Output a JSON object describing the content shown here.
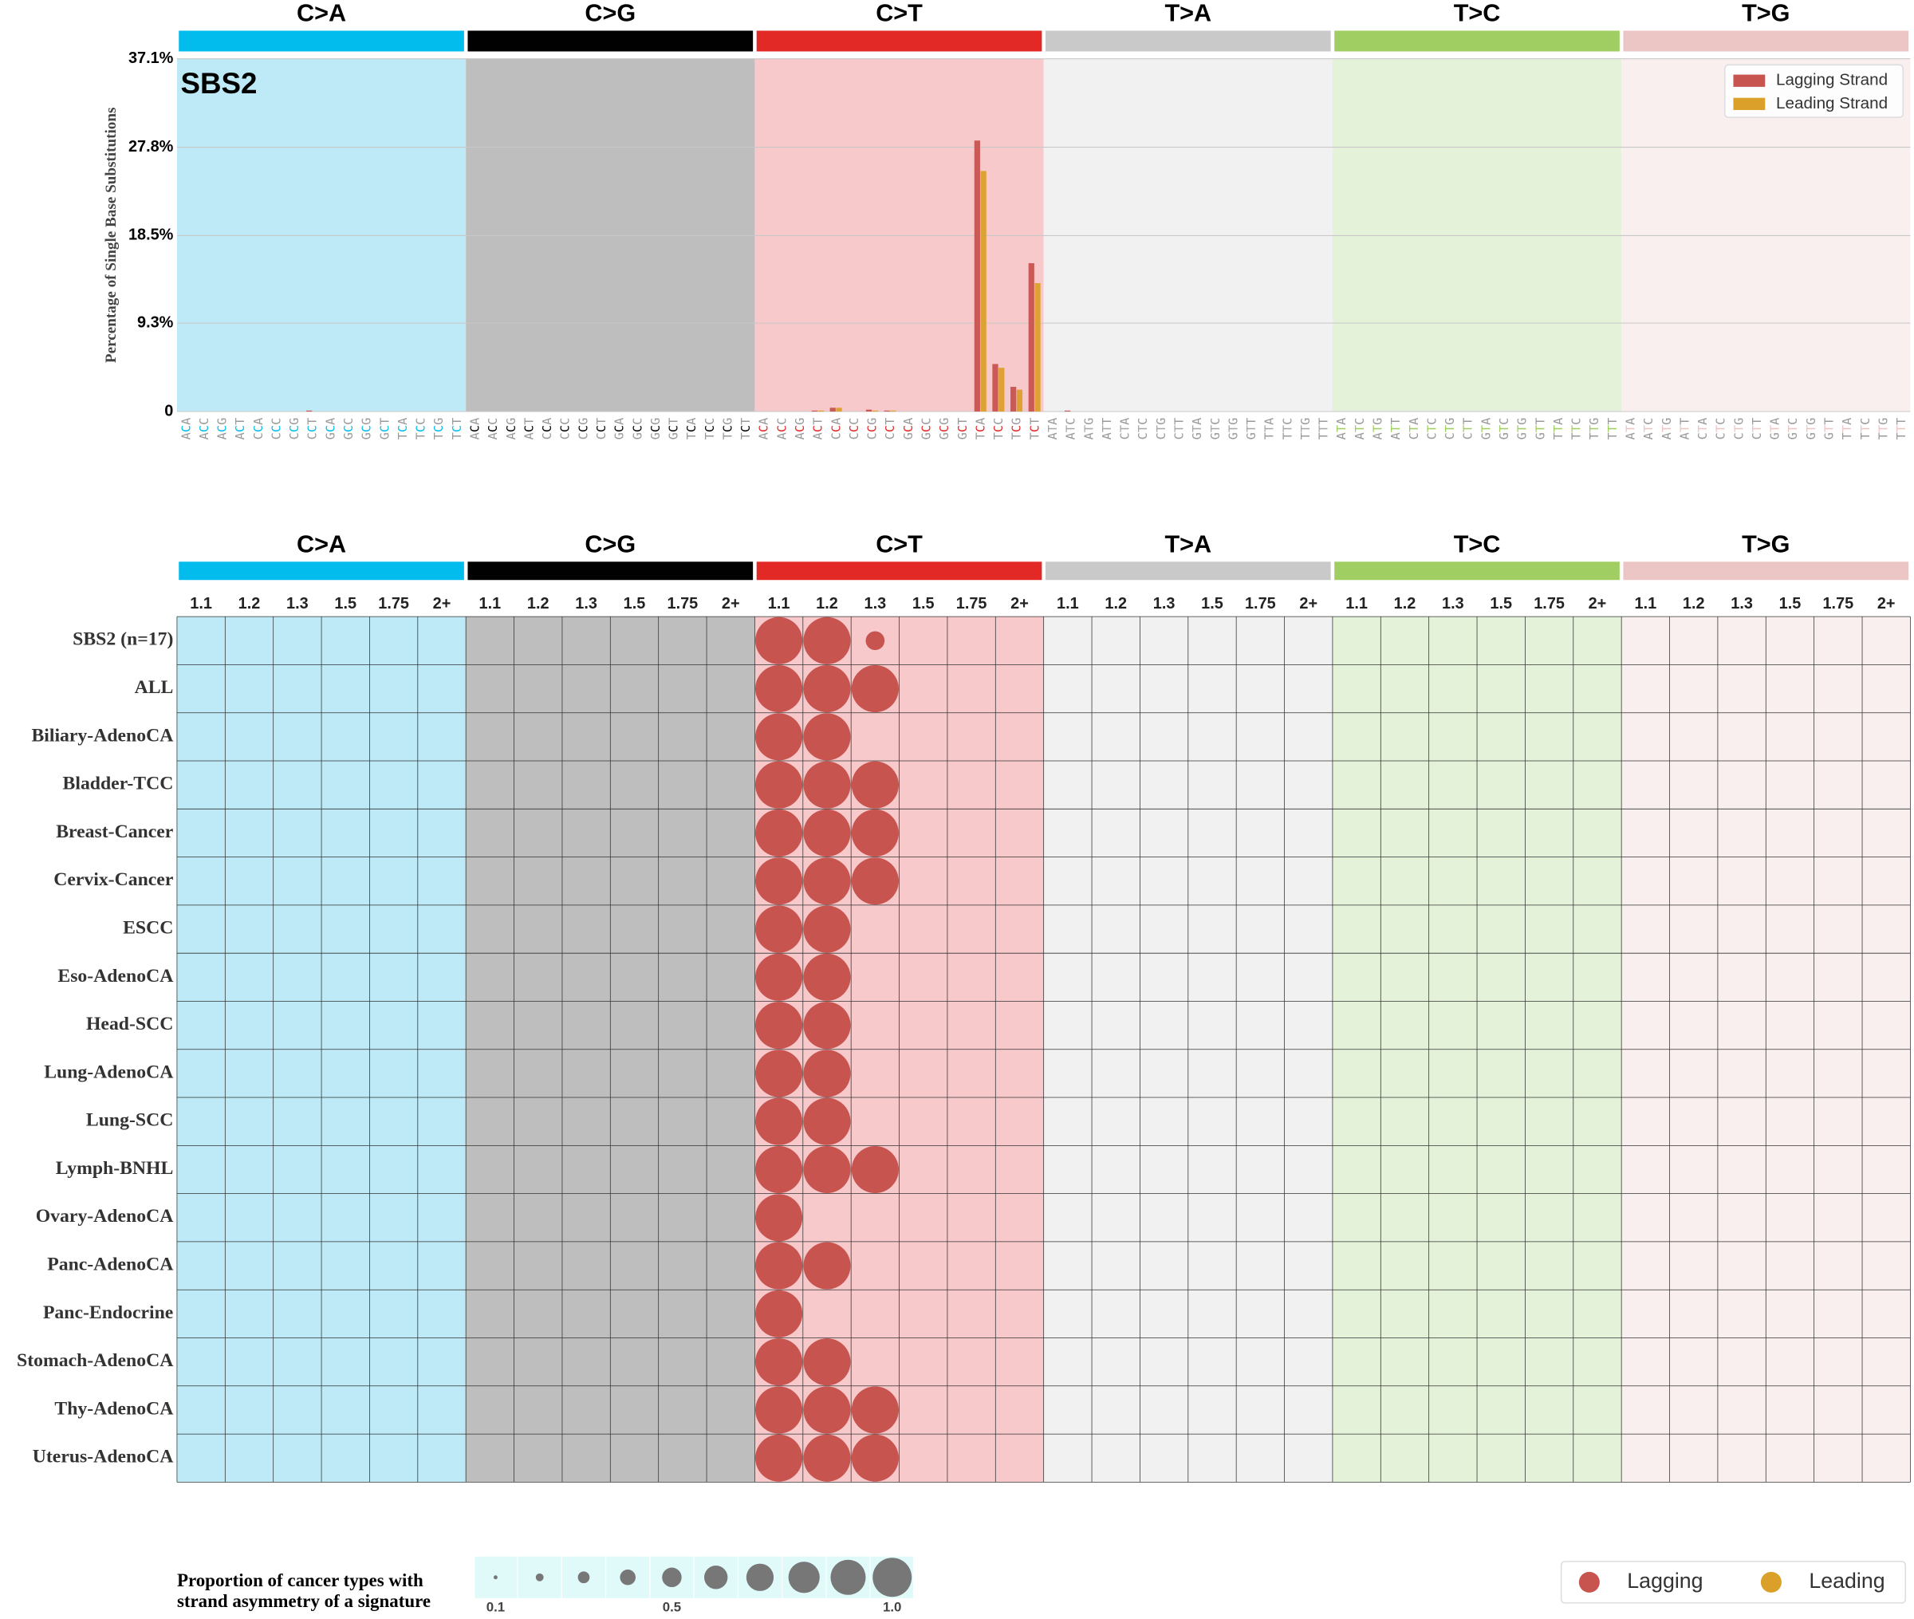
{
  "chart_data": [
    {
      "type": "bar",
      "title": "SBS2",
      "y_label": "Percentage of Single Base Substitutions",
      "groups": [
        "C>A",
        "C>G",
        "C>T",
        "T>A",
        "T>C",
        "T>G"
      ],
      "group_colors": [
        "#03bcee",
        "#010101",
        "#e32926",
        "#cac9c9",
        "#a1ce63",
        "#ebc6c4"
      ],
      "panel_colors": [
        "#bdeaf6",
        "#bebebe",
        "#f7c9cb",
        "#f1f1f1",
        "#e5f2da",
        "#f8efee"
      ],
      "categories": [
        "ACA",
        "ACC",
        "ACG",
        "ACT",
        "CCA",
        "CCC",
        "CCG",
        "CCT",
        "GCA",
        "GCC",
        "GCG",
        "GCT",
        "TCA",
        "TCC",
        "TCG",
        "TCT",
        "ACA",
        "ACC",
        "ACG",
        "ACT",
        "CCA",
        "CCC",
        "CCG",
        "CCT",
        "GCA",
        "GCC",
        "GCG",
        "GCT",
        "TCA",
        "TCC",
        "TCG",
        "TCT",
        "ACA",
        "ACC",
        "ACG",
        "ACT",
        "CCA",
        "CCC",
        "CCG",
        "CCT",
        "GCA",
        "GCC",
        "GCG",
        "GCT",
        "TCA",
        "TCC",
        "TCG",
        "TCT",
        "ATA",
        "ATC",
        "ATG",
        "ATT",
        "CTA",
        "CTC",
        "CTG",
        "CTT",
        "GTA",
        "GTC",
        "GTG",
        "GTT",
        "TTA",
        "TTC",
        "TTG",
        "TTT",
        "ATA",
        "ATC",
        "ATG",
        "ATT",
        "CTA",
        "CTC",
        "CTG",
        "CTT",
        "GTA",
        "GTC",
        "GTG",
        "GTT",
        "TTA",
        "TTC",
        "TTG",
        "TTT",
        "ATA",
        "ATC",
        "ATG",
        "ATT",
        "CTA",
        "CTC",
        "CTG",
        "CTT",
        "GTA",
        "GTC",
        "GTG",
        "GTT",
        "TTA",
        "TTC",
        "TTG",
        "TTT"
      ],
      "series": [
        {
          "name": "Lagging Strand",
          "color": "#c85450",
          "values": [
            0,
            0,
            0,
            0,
            0,
            0,
            0,
            0.1,
            0,
            0,
            0,
            0,
            0,
            0,
            0,
            0,
            0,
            0,
            0,
            0,
            0,
            0,
            0,
            0,
            0,
            0,
            0,
            0,
            0,
            0,
            0,
            0,
            0,
            0,
            0,
            0.1,
            0.4,
            0,
            0.2,
            0.1,
            0,
            0,
            0,
            0,
            28.5,
            5,
            2.6,
            15.6,
            0,
            0.1,
            0,
            0,
            0,
            0,
            0,
            0,
            0,
            0,
            0,
            0,
            0,
            0,
            0,
            0,
            0,
            0,
            0,
            0,
            0,
            0,
            0,
            0,
            0,
            0,
            0,
            0,
            0,
            0,
            0,
            0,
            0,
            0,
            0,
            0,
            0,
            0,
            0,
            0,
            0,
            0,
            0,
            0,
            0,
            0,
            0,
            0
          ]
        },
        {
          "name": "Leading Strand",
          "color": "#dba02a",
          "values": [
            0,
            0,
            0,
            0,
            0,
            0,
            0,
            0,
            0,
            0,
            0,
            0,
            0,
            0,
            0,
            0,
            0,
            0,
            0,
            0,
            0,
            0,
            0,
            0,
            0,
            0,
            0,
            0,
            0,
            0,
            0,
            0,
            0,
            0,
            0,
            0.1,
            0.4,
            0,
            0.1,
            0.1,
            0,
            0,
            0,
            0,
            25.3,
            4.6,
            2.3,
            13.5,
            0,
            0,
            0,
            0,
            0,
            0,
            0,
            0,
            0,
            0,
            0,
            0,
            0,
            0,
            0,
            0,
            0,
            0,
            0,
            0,
            0,
            0,
            0,
            0,
            0,
            0,
            0,
            0,
            0,
            0,
            0,
            0,
            0,
            0,
            0,
            0,
            0,
            0,
            0,
            0,
            0,
            0,
            0,
            0,
            0,
            0,
            0,
            0
          ]
        }
      ],
      "ylim": [
        0,
        37.1
      ],
      "yticks": [
        0,
        {
          "value": 9.3,
          "label": "9.3%"
        },
        {
          "value": 18.5,
          "label": "18.5%"
        },
        {
          "value": 27.8,
          "label": "27.8%"
        },
        {
          "value": 37.1,
          "label": "37.1%"
        }
      ],
      "grid": true,
      "legend": "upper right"
    },
    {
      "type": "bubble_matrix",
      "groups": [
        "C>A",
        "C>G",
        "C>T",
        "T>A",
        "T>C",
        "T>G"
      ],
      "group_colors": [
        "#03bcee",
        "#010101",
        "#e32926",
        "#cac9c9",
        "#a1ce63",
        "#ebc6c4"
      ],
      "panel_colors": [
        "#bdeaf6",
        "#bebebe",
        "#f7c9cb",
        "#f1f1f1",
        "#e5f2da",
        "#f8efee"
      ],
      "thresholds": [
        "1.1",
        "1.2",
        "1.3",
        "1.5",
        "1.75",
        "2+"
      ],
      "rows": [
        "SBS2 (n=17)",
        "ALL",
        "Biliary-AdenoCA",
        "Bladder-TCC",
        "Breast-Cancer",
        "Cervix-Cancer",
        "ESCC",
        "Eso-AdenoCA",
        "Head-SCC",
        "Lung-AdenoCA",
        "Lung-SCC",
        "Lymph-BNHL",
        "Ovary-AdenoCA",
        "Panc-AdenoCA",
        "Panc-Endocrine",
        "Stomach-AdenoCA",
        "Thy-AdenoCA",
        "Uterus-AdenoCA"
      ],
      "values": [
        [
          null,
          null,
          null,
          null,
          null,
          null,
          null,
          null,
          null,
          null,
          null,
          null,
          1,
          1,
          0.4,
          null,
          null,
          null,
          null,
          null,
          null,
          null,
          null,
          null,
          null,
          null,
          null,
          null,
          null,
          null,
          null,
          null,
          null,
          null,
          null,
          null
        ],
        [
          null,
          null,
          null,
          null,
          null,
          null,
          null,
          null,
          null,
          null,
          null,
          null,
          1,
          1,
          1,
          null,
          null,
          null,
          null,
          null,
          null,
          null,
          null,
          null,
          null,
          null,
          null,
          null,
          null,
          null,
          null,
          null,
          null,
          null,
          null,
          null
        ],
        [
          null,
          null,
          null,
          null,
          null,
          null,
          null,
          null,
          null,
          null,
          null,
          null,
          1,
          1,
          null,
          null,
          null,
          null,
          null,
          null,
          null,
          null,
          null,
          null,
          null,
          null,
          null,
          null,
          null,
          null,
          null,
          null,
          null,
          null,
          null,
          null
        ],
        [
          null,
          null,
          null,
          null,
          null,
          null,
          null,
          null,
          null,
          null,
          null,
          null,
          1,
          1,
          1,
          null,
          null,
          null,
          null,
          null,
          null,
          null,
          null,
          null,
          null,
          null,
          null,
          null,
          null,
          null,
          null,
          null,
          null,
          null,
          null,
          null
        ],
        [
          null,
          null,
          null,
          null,
          null,
          null,
          null,
          null,
          null,
          null,
          null,
          null,
          1,
          1,
          1,
          null,
          null,
          null,
          null,
          null,
          null,
          null,
          null,
          null,
          null,
          null,
          null,
          null,
          null,
          null,
          null,
          null,
          null,
          null,
          null,
          null
        ],
        [
          null,
          null,
          null,
          null,
          null,
          null,
          null,
          null,
          null,
          null,
          null,
          null,
          1,
          1,
          1,
          null,
          null,
          null,
          null,
          null,
          null,
          null,
          null,
          null,
          null,
          null,
          null,
          null,
          null,
          null,
          null,
          null,
          null,
          null,
          null,
          null
        ],
        [
          null,
          null,
          null,
          null,
          null,
          null,
          null,
          null,
          null,
          null,
          null,
          null,
          1,
          1,
          null,
          null,
          null,
          null,
          null,
          null,
          null,
          null,
          null,
          null,
          null,
          null,
          null,
          null,
          null,
          null,
          null,
          null,
          null,
          null,
          null,
          null
        ],
        [
          null,
          null,
          null,
          null,
          null,
          null,
          null,
          null,
          null,
          null,
          null,
          null,
          1,
          1,
          null,
          null,
          null,
          null,
          null,
          null,
          null,
          null,
          null,
          null,
          null,
          null,
          null,
          null,
          null,
          null,
          null,
          null,
          null,
          null,
          null,
          null
        ],
        [
          null,
          null,
          null,
          null,
          null,
          null,
          null,
          null,
          null,
          null,
          null,
          null,
          1,
          1,
          null,
          null,
          null,
          null,
          null,
          null,
          null,
          null,
          null,
          null,
          null,
          null,
          null,
          null,
          null,
          null,
          null,
          null,
          null,
          null,
          null,
          null
        ],
        [
          null,
          null,
          null,
          null,
          null,
          null,
          null,
          null,
          null,
          null,
          null,
          null,
          1,
          1,
          null,
          null,
          null,
          null,
          null,
          null,
          null,
          null,
          null,
          null,
          null,
          null,
          null,
          null,
          null,
          null,
          null,
          null,
          null,
          null,
          null,
          null
        ],
        [
          null,
          null,
          null,
          null,
          null,
          null,
          null,
          null,
          null,
          null,
          null,
          null,
          1,
          1,
          null,
          null,
          null,
          null,
          null,
          null,
          null,
          null,
          null,
          null,
          null,
          null,
          null,
          null,
          null,
          null,
          null,
          null,
          null,
          null,
          null,
          null
        ],
        [
          null,
          null,
          null,
          null,
          null,
          null,
          null,
          null,
          null,
          null,
          null,
          null,
          1,
          1,
          1,
          null,
          null,
          null,
          null,
          null,
          null,
          null,
          null,
          null,
          null,
          null,
          null,
          null,
          null,
          null,
          null,
          null,
          null,
          null,
          null,
          null
        ],
        [
          null,
          null,
          null,
          null,
          null,
          null,
          null,
          null,
          null,
          null,
          null,
          null,
          1,
          null,
          null,
          null,
          null,
          null,
          null,
          null,
          null,
          null,
          null,
          null,
          null,
          null,
          null,
          null,
          null,
          null,
          null,
          null,
          null,
          null,
          null,
          null
        ],
        [
          null,
          null,
          null,
          null,
          null,
          null,
          null,
          null,
          null,
          null,
          null,
          null,
          1,
          1,
          null,
          null,
          null,
          null,
          null,
          null,
          null,
          null,
          null,
          null,
          null,
          null,
          null,
          null,
          null,
          null,
          null,
          null,
          null,
          null,
          null,
          null
        ],
        [
          null,
          null,
          null,
          null,
          null,
          null,
          null,
          null,
          null,
          null,
          null,
          null,
          1,
          null,
          null,
          null,
          null,
          null,
          null,
          null,
          null,
          null,
          null,
          null,
          null,
          null,
          null,
          null,
          null,
          null,
          null,
          null,
          null,
          null,
          null,
          null
        ],
        [
          null,
          null,
          null,
          null,
          null,
          null,
          null,
          null,
          null,
          null,
          null,
          null,
          1,
          1,
          null,
          null,
          null,
          null,
          null,
          null,
          null,
          null,
          null,
          null,
          null,
          null,
          null,
          null,
          null,
          null,
          null,
          null,
          null,
          null,
          null,
          null
        ],
        [
          null,
          null,
          null,
          null,
          null,
          null,
          null,
          null,
          null,
          null,
          null,
          null,
          1,
          1,
          1,
          null,
          null,
          null,
          null,
          null,
          null,
          null,
          null,
          null,
          null,
          null,
          null,
          null,
          null,
          null,
          null,
          null,
          null,
          null,
          null,
          null
        ],
        [
          null,
          null,
          null,
          null,
          null,
          null,
          null,
          null,
          null,
          null,
          null,
          null,
          1,
          1,
          1,
          null,
          null,
          null,
          null,
          null,
          null,
          null,
          null,
          null,
          null,
          null,
          null,
          null,
          null,
          null,
          null,
          null,
          null,
          null,
          null,
          null
        ]
      ],
      "legend": [
        {
          "name": "Lagging",
          "color": "#c85450"
        },
        {
          "name": "Leading",
          "color": "#dba02a"
        }
      ],
      "size_legend": {
        "title_lines": [
          "Proportion of cancer types with",
          "strand asymmetry of a signature"
        ],
        "values": [
          0.1,
          0.2,
          0.3,
          0.4,
          0.5,
          0.6,
          0.7,
          0.8,
          0.9,
          1
        ],
        "ticks": [
          0.1,
          0.5,
          {
            "value": 1,
            "label": "1.0"
          }
        ],
        "color": "#777777",
        "background": "#e0fafa"
      }
    }
  ]
}
